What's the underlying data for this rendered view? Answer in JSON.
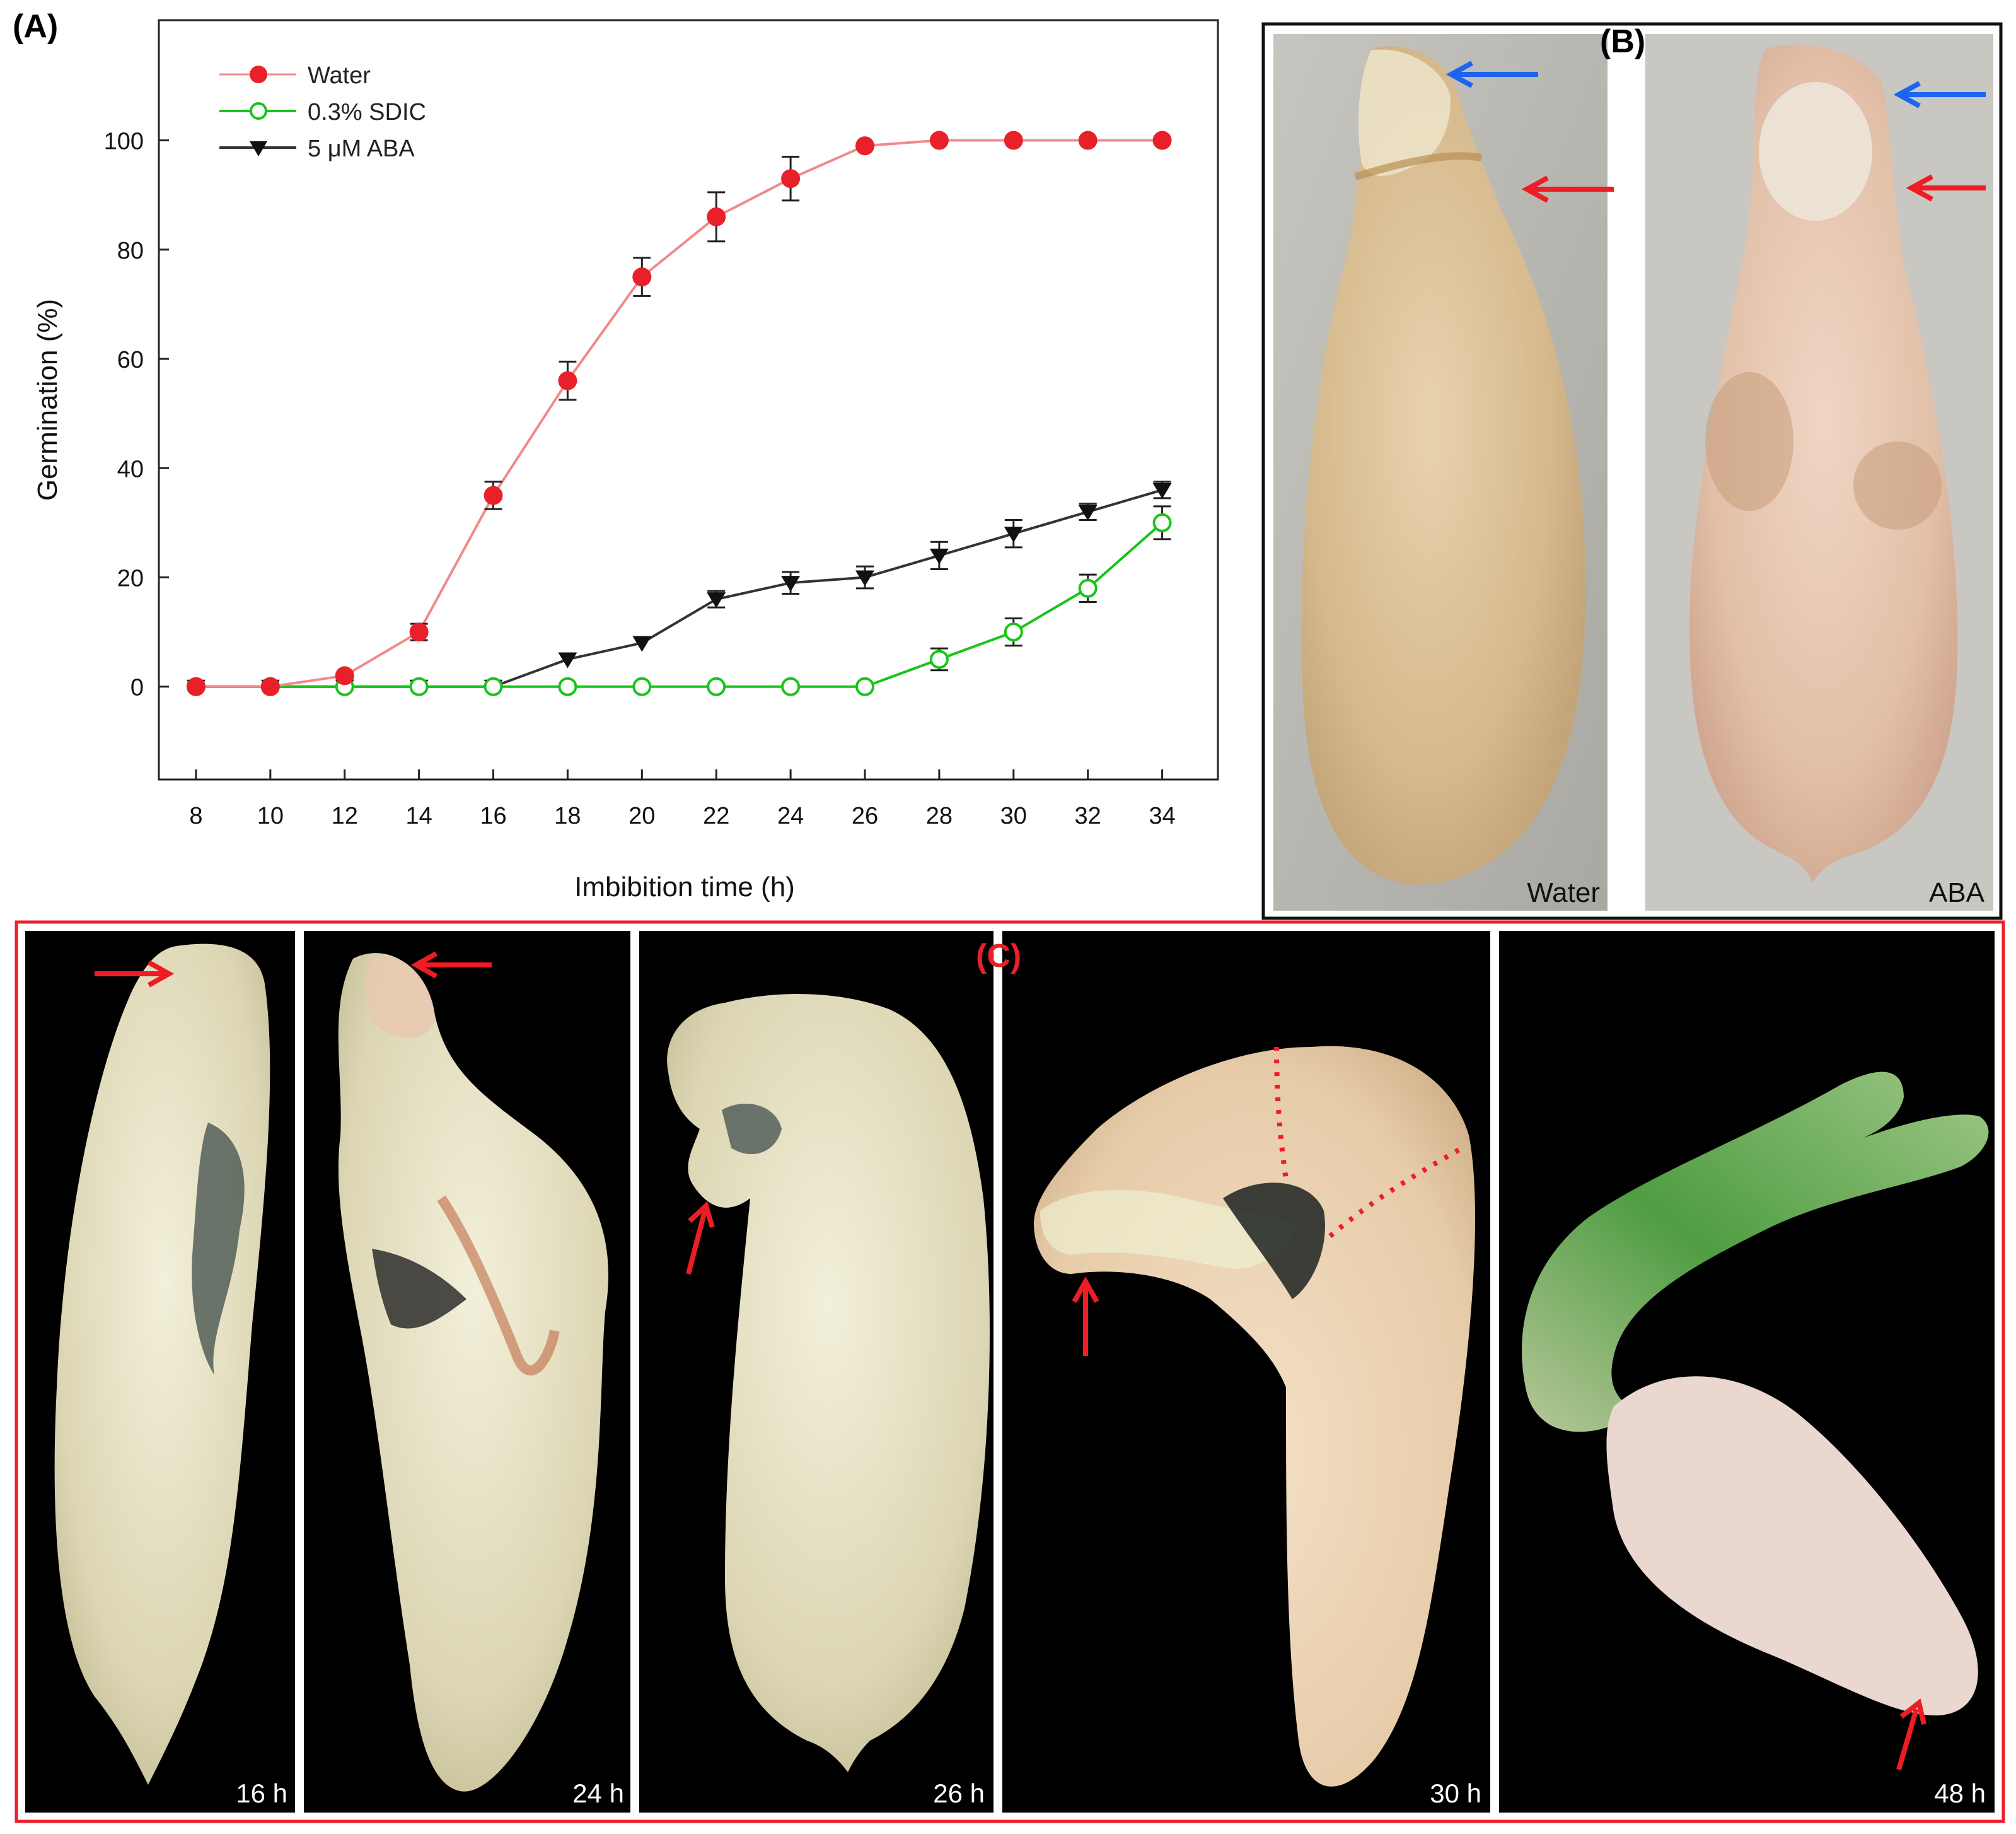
{
  "panel_a": {
    "label": "(A)",
    "chart_data": {
      "type": "line",
      "title": "",
      "xlabel": "Imbibition time (h)",
      "ylabel": "Germination (%)",
      "x": [
        8,
        10,
        12,
        14,
        16,
        18,
        20,
        22,
        24,
        26,
        28,
        30,
        32,
        34
      ],
      "x_ticks": [
        "8",
        "10",
        "12",
        "14",
        "16",
        "18",
        "20",
        "22",
        "24",
        "26",
        "28",
        "30",
        "32",
        "34"
      ],
      "y_ticks": [
        "0",
        "20",
        "40",
        "60",
        "80",
        "100"
      ],
      "xlim": [
        7,
        35.5
      ],
      "ylim": [
        -17,
        122
      ],
      "legend_position": "top-left",
      "series": [
        {
          "name": "Water",
          "marker": "filled-circle",
          "color": "#e8202a",
          "line_color": "#f08a8a",
          "values": [
            0,
            0,
            2,
            10,
            35,
            56,
            75,
            86,
            93,
            99,
            100,
            100,
            100,
            100
          ],
          "errors": [
            0,
            0,
            0,
            1.5,
            2.5,
            3.5,
            3.5,
            4.5,
            4,
            0,
            0,
            0,
            0,
            0
          ]
        },
        {
          "name": "0.3% SDIC",
          "marker": "open-circle",
          "color": "#19c419",
          "line_color": "#19c419",
          "values": [
            0,
            0,
            0,
            0,
            0,
            0,
            0,
            0,
            0,
            0,
            5,
            10,
            18,
            30
          ],
          "errors": [
            0,
            0,
            0,
            0,
            0,
            0,
            0,
            0,
            0,
            0,
            2,
            2.5,
            2.5,
            3
          ]
        },
        {
          "name": "5 μM ABA",
          "marker": "filled-triangle-down",
          "color": "#111111",
          "line_color": "#333333",
          "values": [
            0,
            0,
            0,
            0,
            0,
            5,
            8,
            16,
            19,
            20,
            24,
            28,
            32,
            36
          ],
          "errors": [
            0,
            0,
            0,
            0,
            0,
            0,
            0,
            1.5,
            2,
            2,
            2.5,
            2.5,
            1.5,
            1.5
          ]
        }
      ]
    }
  },
  "panel_b": {
    "label": "(B)",
    "photos": [
      {
        "caption": "Water"
      },
      {
        "caption": "ABA"
      }
    ]
  },
  "panel_c": {
    "label": "(C)",
    "photos": [
      {
        "caption": "16 h"
      },
      {
        "caption": "24 h"
      },
      {
        "caption": "26 h"
      },
      {
        "caption": "30 h"
      },
      {
        "caption": "48 h"
      }
    ]
  },
  "colors": {
    "arrow_red": "#ee1c24",
    "arrow_blue": "#1e64f0",
    "frame_red": "#e8202a",
    "water_series": "#e8202a",
    "sdic_series": "#19c419",
    "aba_series": "#111111"
  }
}
